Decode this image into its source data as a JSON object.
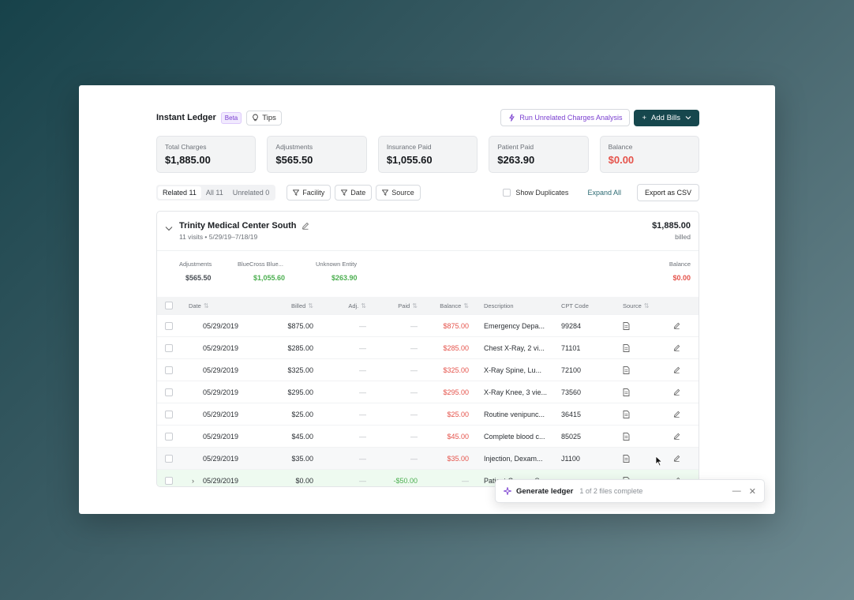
{
  "header": {
    "title": "Instant Ledger",
    "beta": "Beta",
    "tips": "Tips",
    "analysis_button": "Run Unrelated Charges Analysis",
    "add_button": "Add Bills"
  },
  "stats": [
    {
      "label": "Total Charges",
      "value": "$1,885.00"
    },
    {
      "label": "Adjustments",
      "value": "$565.50"
    },
    {
      "label": "Insurance Paid",
      "value": "$1,055.60"
    },
    {
      "label": "Patient Paid",
      "value": "$263.90"
    },
    {
      "label": "Balance",
      "value": "$0.00"
    }
  ],
  "toolbar": {
    "tabs": [
      "Related 11",
      "All 11",
      "Unrelated 0"
    ],
    "filters": [
      "Facility",
      "Date",
      "Source"
    ],
    "show_duplicates": "Show Duplicates",
    "expand_all": "Expand All",
    "export": "Export as CSV"
  },
  "facility": {
    "name": "Trinity Medical Center South",
    "subtitle": "11 visits • 5/29/19–7/18/19",
    "total": "$1,885.00",
    "total_label": "billed",
    "summary": [
      {
        "label": "Adjustments",
        "value": "$565.50"
      },
      {
        "label": "BlueCross Blue...",
        "value": "$1,055.60"
      },
      {
        "label": "Unknown Entity",
        "value": "$263.90"
      },
      {
        "label": "Balance",
        "value": "$0.00"
      }
    ]
  },
  "table": {
    "headers": [
      "Date",
      "Billed",
      "Adj.",
      "Paid",
      "Balance",
      "Description",
      "CPT Code",
      "Source"
    ],
    "rows": [
      {
        "date": "05/29/2019",
        "billed": "$875.00",
        "adj": "—",
        "paid": "—",
        "balance": "$875.00",
        "desc": "Emergency Depa...",
        "cpt": "99284"
      },
      {
        "date": "05/29/2019",
        "billed": "$285.00",
        "adj": "—",
        "paid": "—",
        "balance": "$285.00",
        "desc": "Chest X-Ray, 2 vi...",
        "cpt": "71101"
      },
      {
        "date": "05/29/2019",
        "billed": "$325.00",
        "adj": "—",
        "paid": "—",
        "balance": "$325.00",
        "desc": "X-Ray Spine, Lu...",
        "cpt": "72100"
      },
      {
        "date": "05/29/2019",
        "billed": "$295.00",
        "adj": "—",
        "paid": "—",
        "balance": "$295.00",
        "desc": "X-Ray Knee, 3 vie...",
        "cpt": "73560"
      },
      {
        "date": "05/29/2019",
        "billed": "$25.00",
        "adj": "—",
        "paid": "—",
        "balance": "$25.00",
        "desc": "Routine venipunc...",
        "cpt": "36415"
      },
      {
        "date": "05/29/2019",
        "billed": "$45.00",
        "adj": "—",
        "paid": "—",
        "balance": "$45.00",
        "desc": "Complete blood c...",
        "cpt": "85025"
      },
      {
        "date": "05/29/2019",
        "billed": "$35.00",
        "adj": "—",
        "paid": "—",
        "balance": "$35.00",
        "desc": "Injection, Dexam...",
        "cpt": "J1100"
      },
      {
        "date": "05/29/2019",
        "billed": "$0.00",
        "adj": "—",
        "paid": "-$50.00",
        "balance": "—",
        "desc": "Patient Copay - S...",
        "cpt": "—"
      }
    ]
  },
  "toast": {
    "title": "Generate ledger",
    "subtitle": "1 of 2 files complete"
  },
  "colors": {
    "accent": "#16474d",
    "purple": "#7a3fd0",
    "red": "#e5534b",
    "green": "#4caf50"
  }
}
